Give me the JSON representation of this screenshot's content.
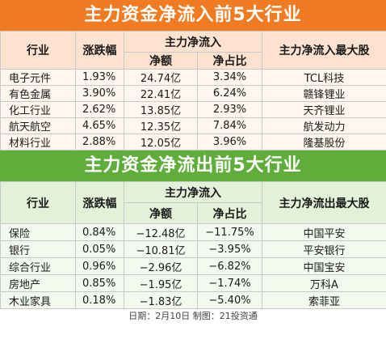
{
  "inflow": {
    "title": "主力资金净流入前5大行业",
    "headers": {
      "industry": "行业",
      "change": "涨跌幅",
      "net_flow": "主力净流入",
      "net_amount": "净额",
      "net_ratio": "净占比",
      "top_stock": "主力净流入最大股"
    },
    "rows": [
      {
        "industry": "电子元件",
        "change": "1.93%",
        "amount": "24.74亿",
        "ratio": "3.34%",
        "stock": "TCL科技"
      },
      {
        "industry": "有色金属",
        "change": "3.90%",
        "amount": "22.41亿",
        "ratio": "6.24%",
        "stock": "赣锋锂业"
      },
      {
        "industry": "化工行业",
        "change": "2.62%",
        "amount": "13.85亿",
        "ratio": "2.93%",
        "stock": "天齐锂业"
      },
      {
        "industry": "航天航空",
        "change": "4.65%",
        "amount": "12.35亿",
        "ratio": "7.84%",
        "stock": "航发动力"
      },
      {
        "industry": "材料行业",
        "change": "2.88%",
        "amount": "12.05亿",
        "ratio": "3.96%",
        "stock": "隆基股份"
      }
    ]
  },
  "outflow": {
    "title": "主力资金净流出前5大行业",
    "headers": {
      "industry": "行业",
      "change": "涨跌幅",
      "net_flow": "主力净流入",
      "net_amount": "净额",
      "net_ratio": "净占比",
      "top_stock": "主力净流出最大股"
    },
    "rows": [
      {
        "industry": "保险",
        "change": "0.84%",
        "amount": "−12.48亿",
        "ratio": "−11.75%",
        "stock": "中国平安"
      },
      {
        "industry": "银行",
        "change": "0.05%",
        "amount": "−10.81亿",
        "ratio": "−3.95%",
        "stock": "平安银行"
      },
      {
        "industry": "综合行业",
        "change": "0.96%",
        "amount": "−2.96亿",
        "ratio": "−6.82%",
        "stock": "中国宝安"
      },
      {
        "industry": "房地产",
        "change": "0.85%",
        "amount": "−1.95亿",
        "ratio": "−1.74%",
        "stock": "万科A"
      },
      {
        "industry": "木业家具",
        "change": "0.18%",
        "amount": "−1.83亿",
        "ratio": "−5.40%",
        "stock": "索菲亚"
      }
    ]
  },
  "footer": "日期：2月10日 制图：21投资通",
  "colors": {
    "inflow_banner": "#ef7b22",
    "outflow_banner": "#5fae3c"
  }
}
